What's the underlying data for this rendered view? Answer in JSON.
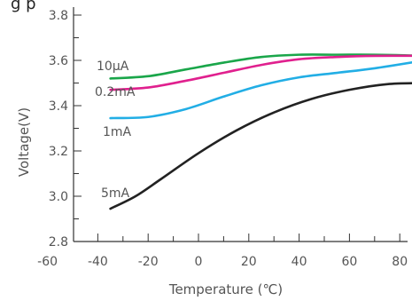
{
  "chart_data": {
    "type": "line",
    "title": "",
    "xlabel": "Temperature (℃)",
    "ylabel": "Voltage(V)",
    "xlim": [
      -60,
      90
    ],
    "ylim": [
      2.8,
      3.8
    ],
    "x_ticks": [
      -60,
      -40,
      -20,
      0,
      20,
      40,
      60,
      80
    ],
    "y_ticks": [
      2.8,
      3.0,
      3.2,
      3.4,
      3.6,
      3.8
    ],
    "y_tick_labels": [
      "2.8",
      "3.0",
      "3.2",
      "3.4",
      "3.6",
      "3.8"
    ],
    "grid": false,
    "series": [
      {
        "name": "10µA",
        "color": "#1aa64a",
        "points": [
          [
            -35,
            3.52
          ],
          [
            -20,
            3.53
          ],
          [
            -5,
            3.56
          ],
          [
            10,
            3.59
          ],
          [
            25,
            3.615
          ],
          [
            40,
            3.625
          ],
          [
            55,
            3.625
          ],
          [
            70,
            3.625
          ],
          [
            90,
            3.62
          ]
        ]
      },
      {
        "name": "0.2mA",
        "color": "#e0208e",
        "points": [
          [
            -35,
            3.47
          ],
          [
            -20,
            3.48
          ],
          [
            -5,
            3.51
          ],
          [
            10,
            3.545
          ],
          [
            25,
            3.58
          ],
          [
            40,
            3.605
          ],
          [
            55,
            3.615
          ],
          [
            70,
            3.62
          ],
          [
            90,
            3.62
          ]
        ]
      },
      {
        "name": "1mA",
        "color": "#22aee5",
        "points": [
          [
            -35,
            3.345
          ],
          [
            -20,
            3.35
          ],
          [
            -5,
            3.385
          ],
          [
            10,
            3.44
          ],
          [
            25,
            3.49
          ],
          [
            40,
            3.525
          ],
          [
            55,
            3.545
          ],
          [
            70,
            3.565
          ],
          [
            90,
            3.6
          ]
        ]
      },
      {
        "name": "5mA",
        "color": "#222222",
        "points": [
          [
            -35,
            2.945
          ],
          [
            -25,
            3.0
          ],
          [
            -15,
            3.075
          ],
          [
            0,
            3.19
          ],
          [
            15,
            3.29
          ],
          [
            30,
            3.37
          ],
          [
            45,
            3.43
          ],
          [
            60,
            3.47
          ],
          [
            75,
            3.495
          ],
          [
            90,
            3.5
          ]
        ]
      }
    ]
  }
}
